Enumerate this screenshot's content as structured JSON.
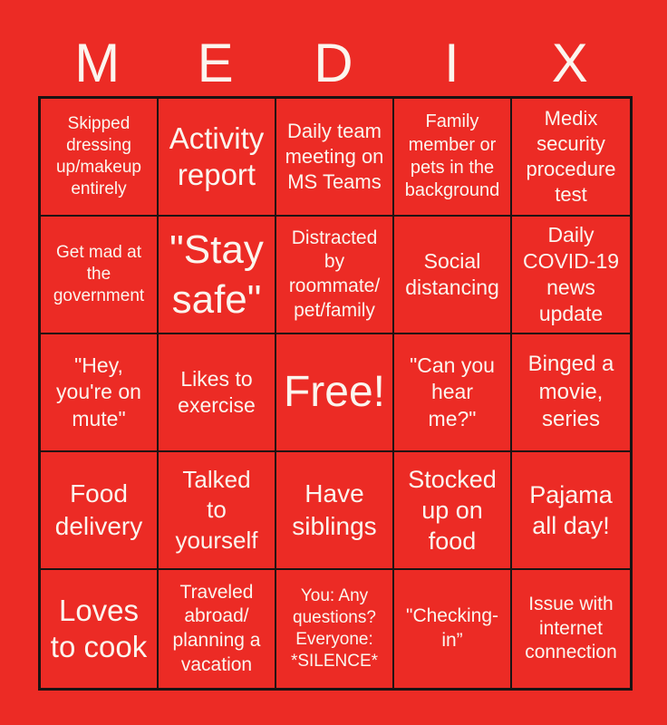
{
  "header": {
    "letters": [
      "M",
      "E",
      "D",
      "I",
      "X"
    ]
  },
  "grid": {
    "cells": [
      {
        "text": "Skipped\ndressing\nup/makeup\nentirely"
      },
      {
        "text": "Activity\nreport"
      },
      {
        "text": "Daily team\nmeeting on\nMS Teams"
      },
      {
        "text": "Family\nmember or\npets in the\nbackground"
      },
      {
        "text": "Medix\nsecurity\nprocedure\ntest"
      },
      {
        "text": "Get mad at\nthe\ngovernment"
      },
      {
        "text": "\"Stay\nsafe\""
      },
      {
        "text": "Distracted\nby\nroommate/\npet/family"
      },
      {
        "text": "Social\ndistancing"
      },
      {
        "text": "Daily\nCOVID-19\nnews\nupdate"
      },
      {
        "text": "\"Hey,\nyou're on\nmute\""
      },
      {
        "text": "Likes to\nexercise"
      },
      {
        "text": "Free!"
      },
      {
        "text": "\"Can you\nhear\nme?\""
      },
      {
        "text": "Binged a\nmovie,\nseries"
      },
      {
        "text": "Food\ndelivery"
      },
      {
        "text": "Talked\nto\nyourself"
      },
      {
        "text": "Have\nsiblings"
      },
      {
        "text": "Stocked\nup on\nfood"
      },
      {
        "text": "Pajama\nall day!"
      },
      {
        "text": "Loves\nto cook"
      },
      {
        "text": "Traveled\nabroad/\nplanning a\nvacation"
      },
      {
        "text": "You: Any\nquestions?\nEveryone:\n*SILENCE*"
      },
      {
        "text": "\"Checking-\nin”"
      },
      {
        "text": "Issue with\ninternet\nconnection"
      }
    ]
  },
  "colors": {
    "background_red": "#EC2B25",
    "grid_border": "#1A1313",
    "text": "#FBF5EE"
  }
}
